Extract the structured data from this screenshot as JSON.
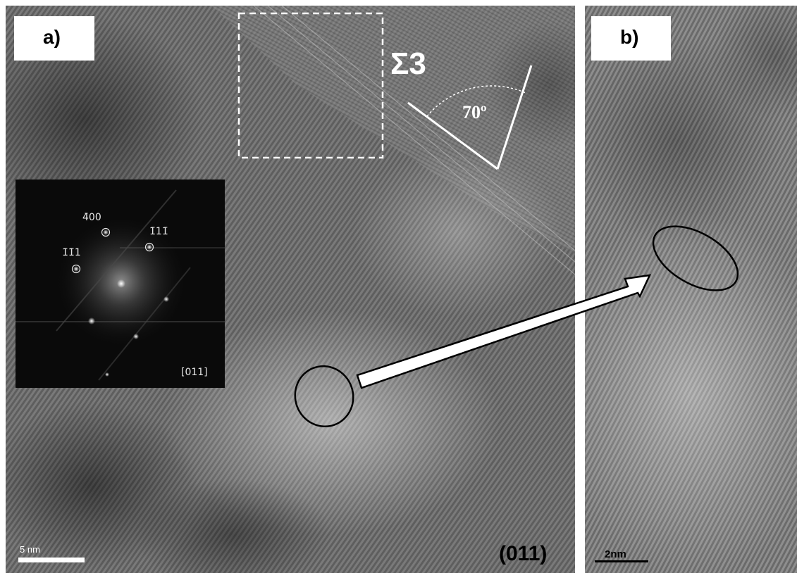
{
  "panels": {
    "a": {
      "label": "a)"
    },
    "b": {
      "label": "b)"
    }
  },
  "annotations": {
    "boundary_type": "Σ3",
    "angle": "70º",
    "orientation": "(011)"
  },
  "fft_inset": {
    "spot_labels": [
      "4̄00",
      "1̄1̄1",
      "1̄11̄"
    ],
    "zone_axis": "[011]"
  },
  "scale_bars": {
    "a": "5 nm",
    "b": "2nm"
  },
  "colors": {
    "background": "#ffffff",
    "micrograph_mid": "#777777",
    "fft_background": "#0a0a0a",
    "overlay_white": "#ffffff",
    "overlay_black": "#000000"
  }
}
